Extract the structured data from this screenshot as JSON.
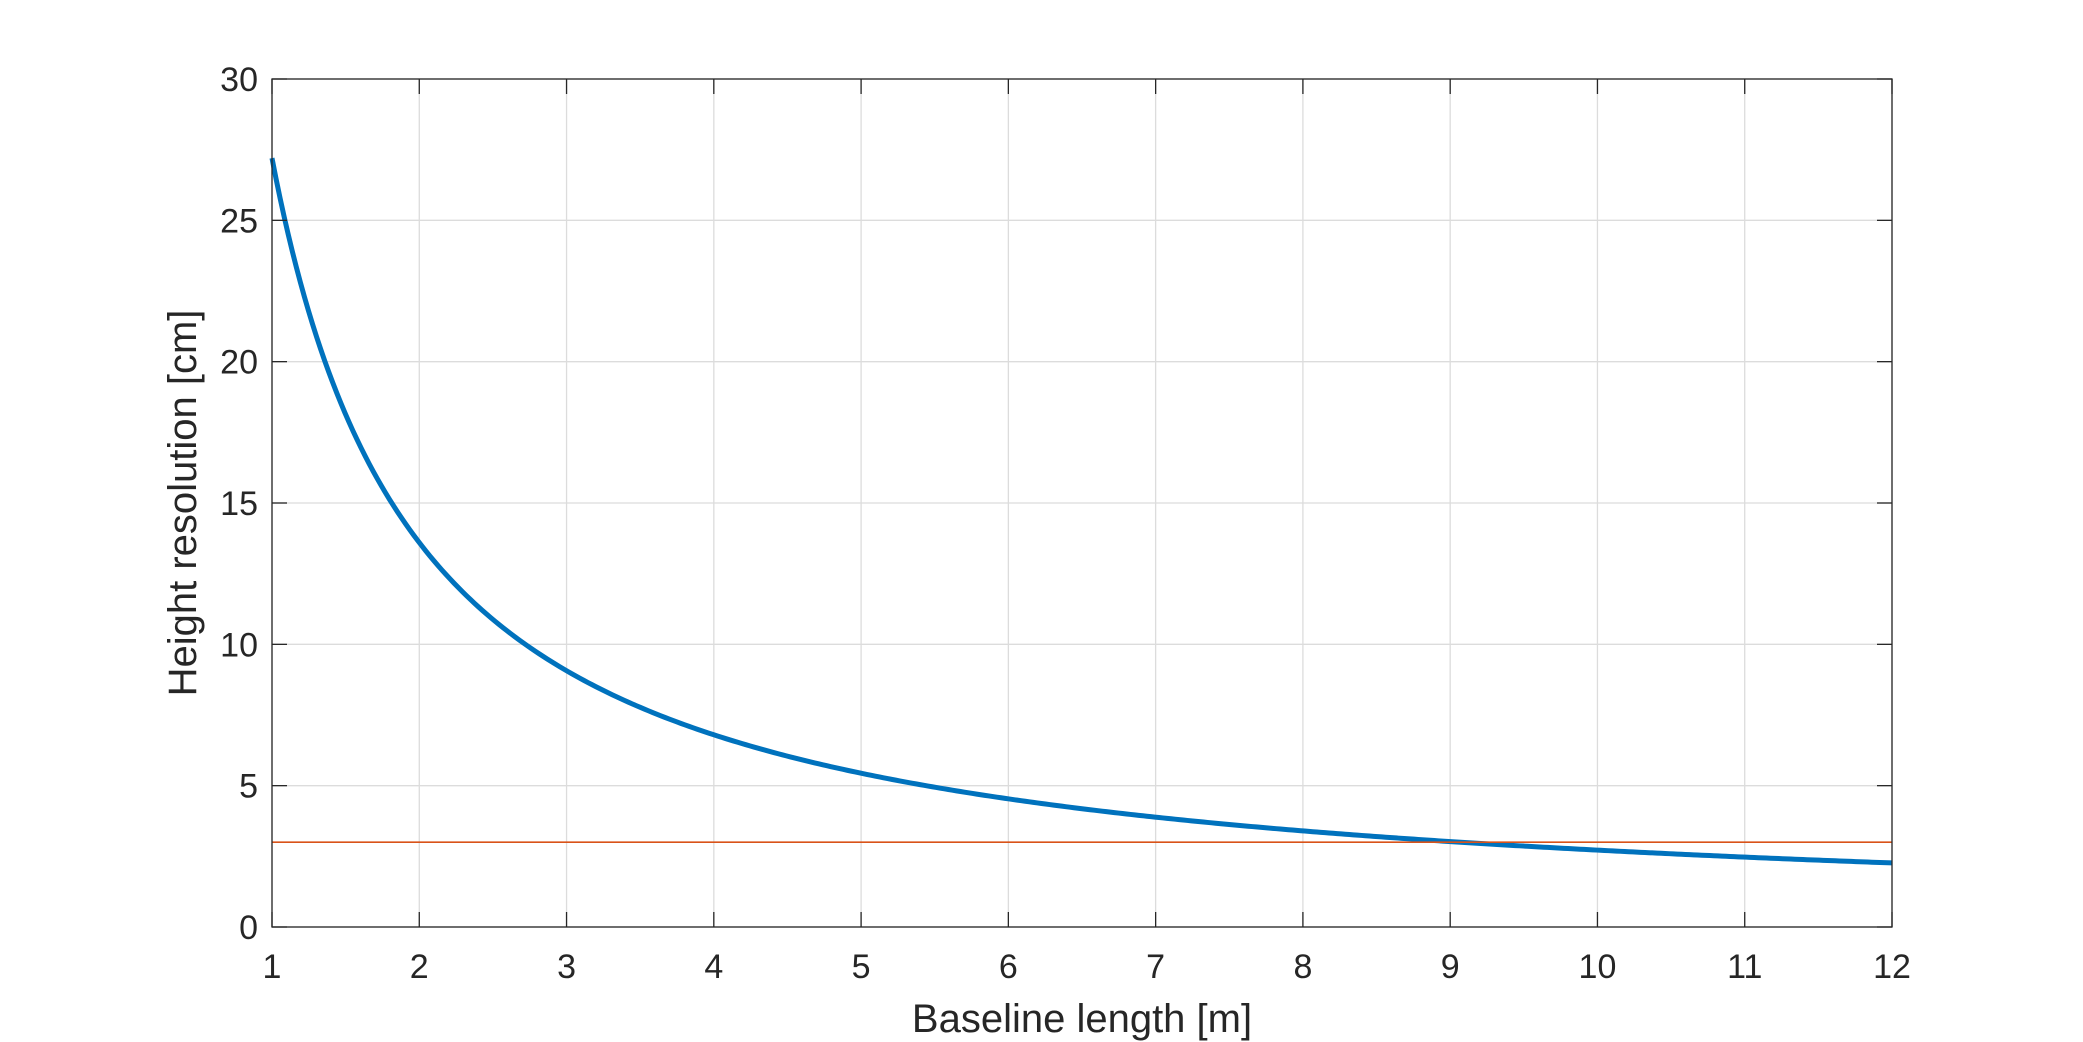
{
  "chart_data": {
    "type": "line",
    "title": "",
    "xlabel": "Baseline length [m]",
    "ylabel": "Height resolution [cm]",
    "xlim": [
      1,
      12
    ],
    "ylim": [
      0,
      30
    ],
    "xticks": [
      1,
      2,
      3,
      4,
      5,
      6,
      7,
      8,
      9,
      10,
      11,
      12
    ],
    "yticks": [
      0,
      5,
      10,
      15,
      20,
      25,
      30
    ],
    "grid": true,
    "legend": "none",
    "series": [
      {
        "color": "#0072BD",
        "x": [
          1,
          1.5,
          2,
          2.5,
          3,
          3.5,
          4,
          5,
          6,
          7,
          8,
          9,
          10,
          11,
          12
        ],
        "y": [
          27.2,
          18.1,
          13.6,
          10.9,
          9.1,
          7.8,
          6.8,
          5.4,
          4.5,
          3.9,
          3.4,
          3.0,
          2.7,
          2.5,
          2.3
        ]
      },
      {
        "color": "#D95319",
        "x": [
          1,
          12
        ],
        "y": [
          3,
          3
        ]
      }
    ]
  }
}
